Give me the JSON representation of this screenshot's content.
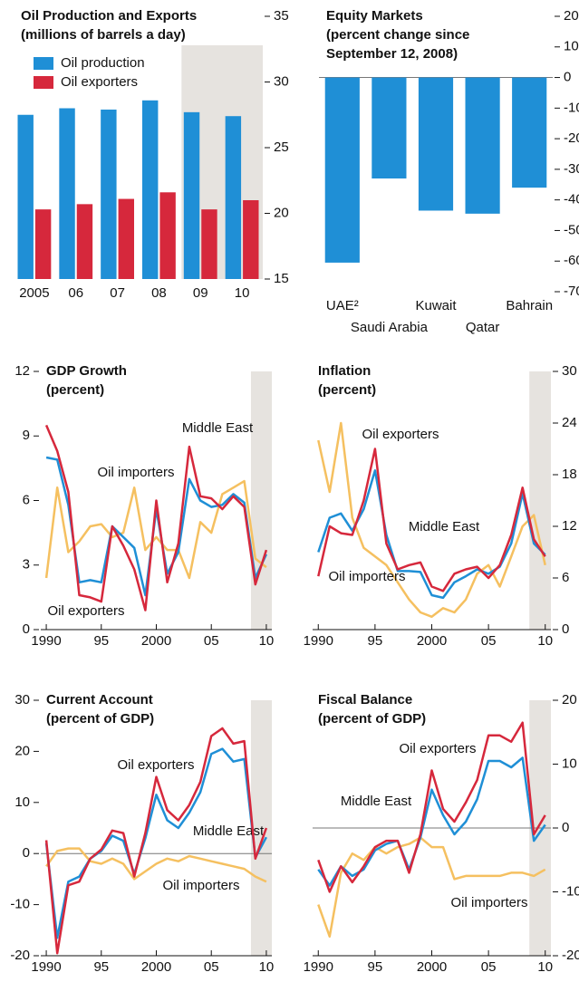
{
  "chart_data": [
    {
      "type": "bar",
      "title": "Oil Production and Exports",
      "subtitle": [
        "(millions of barrels a day)"
      ],
      "categories": [
        "2005",
        "06",
        "07",
        "08",
        "09",
        "10"
      ],
      "series": [
        {
          "name": "Oil production",
          "color": "#1f8fd6",
          "values": [
            27.5,
            28.0,
            27.9,
            28.6,
            27.7,
            27.4
          ]
        },
        {
          "name": "Oil exporters",
          "color": "#d6283c",
          "values": [
            20.3,
            20.7,
            21.1,
            21.6,
            20.3,
            21.0
          ]
        }
      ],
      "ylim": [
        15,
        35
      ],
      "yticks": [
        15,
        20,
        25,
        30,
        35
      ],
      "y_axis_side": "right",
      "legend": "upper left"
    },
    {
      "type": "bar",
      "title": "Equity Markets",
      "subtitle": [
        "(percent change since",
        "September 12, 2008)"
      ],
      "categories": [
        "UAE²",
        "Saudi Arabia",
        "Kuwait",
        "Qatar",
        "Bahrain"
      ],
      "values": [
        -60.5,
        -33,
        -43.5,
        -44.5,
        -36
      ],
      "color": "#1f8fd6",
      "ylim": [
        -70,
        20
      ],
      "yticks": [
        -70,
        -60,
        -50,
        -40,
        -30,
        -20,
        -10,
        0,
        10,
        20
      ],
      "y_axis_side": "right",
      "zero_line": true
    },
    {
      "type": "line",
      "title": "GDP Growth",
      "subtitle": [
        "(percent)"
      ],
      "x": [
        1990,
        1991,
        1992,
        1993,
        1994,
        1995,
        1996,
        1997,
        1998,
        1999,
        2000,
        2001,
        2002,
        2003,
        2004,
        2005,
        2006,
        2007,
        2008,
        2009,
        2010
      ],
      "series": [
        {
          "name": "Oil importers",
          "color": "#f5c060",
          "values": [
            2.4,
            6.6,
            3.6,
            4.1,
            4.8,
            4.9,
            4.3,
            4.5,
            6.6,
            3.7,
            4.3,
            3.7,
            3.7,
            2.4,
            5.0,
            4.5,
            6.3,
            6.6,
            6.9,
            3.3,
            2.9
          ]
        },
        {
          "name": "Middle East",
          "color": "#1f8fd6",
          "values": [
            8.0,
            7.9,
            5.8,
            2.2,
            2.3,
            2.2,
            4.8,
            4.3,
            3.8,
            1.6,
            5.6,
            2.6,
            3.6,
            7.0,
            6.0,
            5.7,
            5.8,
            6.3,
            5.9,
            2.4,
            3.5
          ]
        },
        {
          "name": "Oil exporters",
          "color": "#d6283c",
          "values": [
            9.5,
            8.3,
            6.4,
            1.6,
            1.5,
            1.3,
            4.8,
            3.9,
            2.8,
            0.9,
            6.0,
            2.2,
            4.0,
            8.5,
            6.2,
            6.1,
            5.6,
            6.2,
            5.7,
            2.1,
            3.7
          ]
        }
      ],
      "xlim": [
        1989.5,
        2010.5
      ],
      "xticks": [
        {
          "value": 1990,
          "label": "1990"
        },
        {
          "value": 1995,
          "label": "95"
        },
        {
          "value": 2000,
          "label": "2000"
        },
        {
          "value": 2005,
          "label": "05"
        },
        {
          "value": 2010,
          "label": "10"
        }
      ],
      "ylim": [
        0,
        12
      ],
      "yticks": [
        0,
        3,
        6,
        9,
        12
      ],
      "y_axis_side": "left",
      "shaded_x": [
        2008.6,
        2010.5
      ]
    },
    {
      "type": "line",
      "title": "Inflation",
      "subtitle": [
        "(percent)"
      ],
      "x": [
        1990,
        1991,
        1992,
        1993,
        1994,
        1995,
        1996,
        1997,
        1998,
        1999,
        2000,
        2001,
        2002,
        2003,
        2004,
        2005,
        2006,
        2007,
        2008,
        2009,
        2010
      ],
      "series": [
        {
          "name": "Oil importers",
          "color": "#f5c060",
          "values": [
            22,
            16,
            24,
            13,
            9.5,
            8.5,
            7.5,
            5.5,
            3.5,
            2.0,
            1.5,
            2.5,
            2.0,
            3.5,
            6.5,
            7.5,
            5.0,
            8.5,
            12.0,
            13.3,
            7.5
          ]
        },
        {
          "name": "Middle East",
          "color": "#1f8fd6",
          "values": [
            9.0,
            13.0,
            13.5,
            11.5,
            14.0,
            18.5,
            11.0,
            6.8,
            6.8,
            6.7,
            4.0,
            3.7,
            5.5,
            6.2,
            7.0,
            6.5,
            7.3,
            10.0,
            15.8,
            10.0,
            8.7
          ]
        },
        {
          "name": "Oil exporters",
          "color": "#d6283c",
          "values": [
            6.2,
            12.0,
            11.2,
            11.0,
            15.0,
            21.0,
            10.0,
            7.0,
            7.5,
            7.8,
            5.0,
            4.5,
            6.5,
            7.0,
            7.3,
            6.0,
            7.5,
            11.0,
            16.5,
            10.5,
            8.5
          ]
        }
      ],
      "xlim": [
        1989.5,
        2010.5
      ],
      "xticks": [
        {
          "value": 1990,
          "label": "1990"
        },
        {
          "value": 1995,
          "label": "95"
        },
        {
          "value": 2000,
          "label": "2000"
        },
        {
          "value": 2005,
          "label": "05"
        },
        {
          "value": 2010,
          "label": "10"
        }
      ],
      "ylim": [
        0,
        30
      ],
      "yticks": [
        0,
        6,
        12,
        18,
        24,
        30
      ],
      "y_axis_side": "right",
      "shaded_x": [
        2008.6,
        2010.5
      ]
    },
    {
      "type": "line",
      "title": "Current Account",
      "subtitle": [
        "(percent of GDP)"
      ],
      "x": [
        1990,
        1991,
        1992,
        1993,
        1994,
        1995,
        1996,
        1997,
        1998,
        1999,
        2000,
        2001,
        2002,
        2003,
        2004,
        2005,
        2006,
        2007,
        2008,
        2009,
        2010
      ],
      "series": [
        {
          "name": "Oil importers",
          "color": "#f5c060",
          "values": [
            -2.5,
            0.5,
            1.0,
            1.0,
            -1.5,
            -2.0,
            -1.0,
            -2.0,
            -5.0,
            -3.5,
            -2.0,
            -1.0,
            -1.5,
            -0.5,
            -1.0,
            -1.5,
            -2.0,
            -2.5,
            -3.0,
            -4.5,
            -5.5
          ]
        },
        {
          "name": "Middle East",
          "color": "#1f8fd6",
          "values": [
            2.0,
            -16.5,
            -5.5,
            -4.5,
            -1.0,
            0.5,
            3.5,
            2.5,
            -4.0,
            3.0,
            11.5,
            6.5,
            5.0,
            8.0,
            12.0,
            19.5,
            20.5,
            18.0,
            18.5,
            -0.8,
            3.2
          ]
        },
        {
          "name": "Oil exporters",
          "color": "#d6283c",
          "values": [
            2.6,
            -19.5,
            -6.2,
            -5.5,
            -1.0,
            0.8,
            4.5,
            4.0,
            -4.5,
            4.0,
            15.0,
            8.5,
            6.5,
            9.5,
            14.0,
            23.0,
            24.5,
            21.5,
            22.0,
            -1.0,
            5.0
          ]
        }
      ],
      "xlim": [
        1989.5,
        2010.5
      ],
      "xticks": [
        {
          "value": 1990,
          "label": "1990"
        },
        {
          "value": 1995,
          "label": "95"
        },
        {
          "value": 2000,
          "label": "2000"
        },
        {
          "value": 2005,
          "label": "05"
        },
        {
          "value": 2010,
          "label": "10"
        }
      ],
      "ylim": [
        -20,
        30
      ],
      "yticks": [
        -20,
        -10,
        0,
        10,
        20,
        30
      ],
      "y_axis_side": "left",
      "zero_line": true,
      "shaded_x": [
        2008.6,
        2010.5
      ]
    },
    {
      "type": "line",
      "title": "Fiscal Balance",
      "subtitle": [
        "(percent of GDP)"
      ],
      "x": [
        1990,
        1991,
        1992,
        1993,
        1994,
        1995,
        1996,
        1997,
        1998,
        1999,
        2000,
        2001,
        2002,
        2003,
        2004,
        2005,
        2006,
        2007,
        2008,
        2009,
        2010
      ],
      "series": [
        {
          "name": "Oil importers",
          "color": "#f5c060",
          "values": [
            -12,
            -17,
            -7,
            -4,
            -5,
            -3,
            -4,
            -3,
            -2.5,
            -1.5,
            -3,
            -3,
            -8,
            -7.5,
            -7.5,
            -7.5,
            -7.5,
            -7,
            -7,
            -7.5,
            -6.5
          ]
        },
        {
          "name": "Middle East",
          "color": "#1f8fd6",
          "values": [
            -6.5,
            -9,
            -6,
            -7.5,
            -6.5,
            -3.5,
            -2.5,
            -2,
            -6.5,
            -1.5,
            6,
            2,
            -1,
            1,
            4.5,
            10.5,
            10.5,
            9.5,
            11,
            -2,
            0.5
          ]
        },
        {
          "name": "Oil exporters",
          "color": "#d6283c",
          "values": [
            -5,
            -10,
            -6,
            -8.5,
            -6,
            -3,
            -2,
            -2,
            -7,
            -1,
            9,
            3,
            1,
            4,
            7.5,
            14.5,
            14.5,
            13.5,
            16.5,
            -1,
            2
          ]
        }
      ],
      "xlim": [
        1989.5,
        2010.5
      ],
      "xticks": [
        {
          "value": 1990,
          "label": "1990"
        },
        {
          "value": 1995,
          "label": "95"
        },
        {
          "value": 2000,
          "label": "2000"
        },
        {
          "value": 2005,
          "label": "05"
        },
        {
          "value": 2010,
          "label": "10"
        }
      ],
      "ylim": [
        -20,
        20
      ],
      "yticks": [
        -20,
        -10,
        0,
        10,
        20
      ],
      "y_axis_side": "right",
      "zero_line": true,
      "shaded_x": [
        2008.6,
        2010.5
      ]
    }
  ]
}
